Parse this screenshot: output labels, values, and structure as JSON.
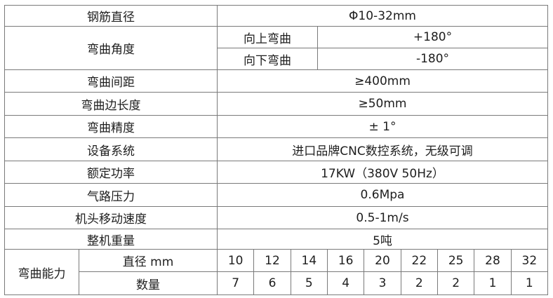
{
  "rows": [
    {
      "label": "钢筋直径",
      "value": "Φ10-32mm"
    },
    {
      "label": "弯曲角度",
      "sub": [
        {
          "label": "向上弯曲",
          "value": "+180°"
        },
        {
          "label": "向下弯曲",
          "value": "-180°"
        }
      ]
    },
    {
      "label": "弯曲间距",
      "value": "≥400mm"
    },
    {
      "label": "弯曲边长度",
      "value": "≥50mm"
    },
    {
      "label": "弯曲精度",
      "value": "± 1°"
    },
    {
      "label": "设备系统",
      "value": "进口品牌CNC数控系统，无级可调"
    },
    {
      "label": "额定功率",
      "value": "17KW（380V 50Hz）"
    },
    {
      "label": "气路压力",
      "value": "0.6Mpa"
    },
    {
      "label": "机头移动速度",
      "value": "0.5-1m/s"
    },
    {
      "label": "整机重量",
      "value": "5吨"
    }
  ],
  "capacity": {
    "label": "弯曲能力",
    "diameter_label": "直径 mm",
    "quantity_label": "数量",
    "diameters": [
      "10",
      "12",
      "14",
      "16",
      "20",
      "22",
      "25",
      "28",
      "32"
    ],
    "quantities": [
      "7",
      "6",
      "5",
      "4",
      "3",
      "2",
      "2",
      "1",
      "1"
    ]
  }
}
